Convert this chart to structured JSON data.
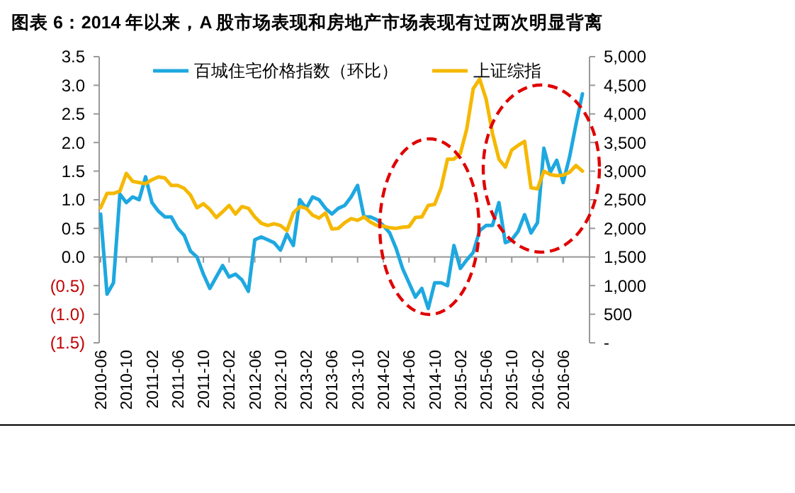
{
  "chart_data": {
    "type": "line",
    "title": "图表 6：2014 年以来，A 股市场表现和房地产市场表现有过两次明显背离",
    "categories": [
      "2010-06",
      null,
      null,
      null,
      "2010-10",
      null,
      null,
      null,
      "2011-02",
      null,
      null,
      null,
      "2011-06",
      null,
      null,
      null,
      "2011-10",
      null,
      null,
      null,
      "2012-02",
      null,
      null,
      null,
      "2012-06",
      null,
      null,
      null,
      "2012-10",
      null,
      null,
      null,
      "2013-02",
      null,
      null,
      null,
      "2013-06",
      null,
      null,
      null,
      "2013-10",
      null,
      null,
      null,
      "2014-02",
      null,
      null,
      null,
      "2014-06",
      null,
      null,
      null,
      "2014-10",
      null,
      null,
      null,
      "2015-02",
      null,
      null,
      null,
      "2015-06",
      null,
      null,
      null,
      "2015-10",
      null,
      null,
      null,
      "2016-02",
      null,
      null,
      null,
      "2016-06",
      null,
      null,
      null
    ],
    "series": [
      {
        "name": "百城住宅价格指数（环比）",
        "color": "#1ea8e0",
        "values": [
          0.75,
          -0.65,
          -0.45,
          1.1,
          0.95,
          1.05,
          1.0,
          1.4,
          0.95,
          0.8,
          0.7,
          0.7,
          0.5,
          0.38,
          0.1,
          0.0,
          -0.3,
          -0.55,
          -0.35,
          -0.15,
          -0.35,
          -0.3,
          -0.4,
          -0.6,
          0.3,
          0.35,
          0.3,
          0.25,
          0.12,
          0.4,
          0.2,
          1.0,
          0.85,
          1.05,
          1.0,
          0.85,
          0.75,
          0.85,
          0.9,
          1.05,
          1.25,
          0.7,
          0.7,
          0.65,
          0.55,
          0.42,
          0.15,
          -0.2,
          -0.45,
          -0.7,
          -0.55,
          -0.9,
          -0.45,
          -0.45,
          -0.5,
          0.2,
          -0.2,
          -0.05,
          0.08,
          0.46,
          0.55,
          0.55,
          0.95,
          0.25,
          0.3,
          0.45,
          0.74,
          0.42,
          0.6,
          1.9,
          1.48,
          1.69,
          1.3,
          1.75,
          2.32,
          2.85
        ]
      },
      {
        "name": "上证综指",
        "color": "#f5b800",
        "axis": "y2",
        "values": [
          2360,
          2610,
          2610,
          2650,
          2960,
          2820,
          2800,
          2780,
          2850,
          2900,
          2880,
          2750,
          2750,
          2700,
          2580,
          2360,
          2430,
          2330,
          2190,
          2290,
          2400,
          2250,
          2380,
          2350,
          2200,
          2090,
          2050,
          2080,
          2050,
          1960,
          2270,
          2380,
          2350,
          2230,
          2180,
          2270,
          1990,
          2000,
          2100,
          2170,
          2140,
          2200,
          2110,
          2050,
          2040,
          2010,
          2000,
          2020,
          2030,
          2190,
          2200,
          2400,
          2420,
          2710,
          3210,
          3210,
          3310,
          3740,
          4440,
          4610,
          4260,
          3660,
          3210,
          3070,
          3370,
          3450,
          3520,
          2710,
          2690,
          3000,
          2940,
          2920,
          2930,
          2980,
          3100,
          3000
        ]
      }
    ],
    "ylim": [
      -1.5,
      3.5
    ],
    "yticks": [
      {
        "value": -1.5,
        "label": "(1.5)"
      },
      {
        "value": -1.0,
        "label": "(1.0)"
      },
      {
        "value": -0.5,
        "label": "(0.5)"
      },
      {
        "value": 0,
        "label": "0.0"
      },
      {
        "value": 0.5,
        "label": "0.5"
      },
      {
        "value": 1.0,
        "label": "1.0"
      },
      {
        "value": 1.5,
        "label": "1.5"
      },
      {
        "value": 2.0,
        "label": "2.0"
      },
      {
        "value": 2.5,
        "label": "2.5"
      },
      {
        "value": 3.0,
        "label": "3.0"
      },
      {
        "value": 3.5,
        "label": "3.5"
      }
    ],
    "y2lim": [
      0,
      5000
    ],
    "y2ticks": [
      {
        "value": 0,
        "label": "-"
      },
      500,
      {
        "value": 1000,
        "label": "1,000"
      },
      {
        "value": 1500,
        "label": "1,500"
      },
      {
        "value": 2000,
        "label": "2,000"
      },
      {
        "value": 2500,
        "label": "2,500"
      },
      {
        "value": 3000,
        "label": "3,000"
      },
      {
        "value": 3500,
        "label": "3,500"
      },
      {
        "value": 4000,
        "label": "4,000"
      },
      {
        "value": 4500,
        "label": "4,500"
      },
      {
        "value": 5000,
        "label": "5,000"
      }
    ],
    "legend": "top",
    "marker": "none",
    "line_style": "solid"
  }
}
